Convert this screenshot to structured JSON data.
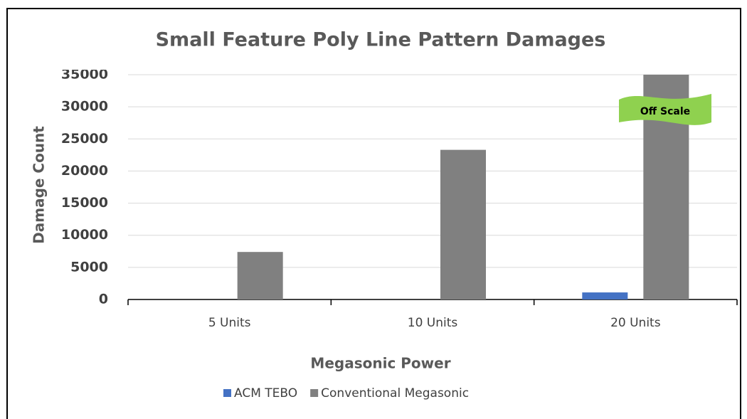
{
  "chart_data": {
    "type": "bar",
    "title": "Small Feature Poly Line Pattern Damages",
    "x_label": "Megasonic Power",
    "y_label": "Damage Count",
    "categories": [
      "5 Units",
      "10 Units",
      "20 Units"
    ],
    "series": [
      {
        "name": "ACM TEBO",
        "color": "#4472c4",
        "values": [
          0,
          0,
          1100
        ]
      },
      {
        "name": "Conventional Megasonic",
        "color": "#808080",
        "values": [
          7400,
          23300,
          35000
        ]
      }
    ],
    "ylim": [
      0,
      35000
    ],
    "yticks": [
      0,
      5000,
      10000,
      15000,
      20000,
      25000,
      30000,
      35000
    ],
    "grid": true,
    "legend": "bottom",
    "annotation": "Off Scale"
  }
}
